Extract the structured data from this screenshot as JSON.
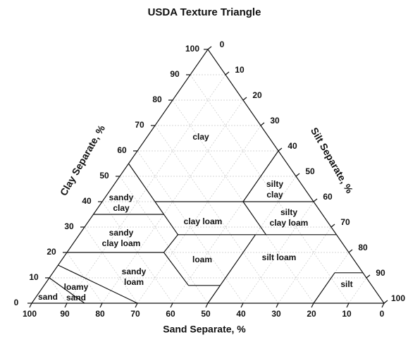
{
  "title": "USDA Texture Triangle",
  "axes": {
    "clay": "Clay Separate, %",
    "silt": "Silt Separate, %",
    "sand": "Sand Separate, %"
  },
  "clay_ticks": [
    0,
    10,
    20,
    30,
    40,
    50,
    60,
    70,
    80,
    90,
    100
  ],
  "silt_ticks": [
    0,
    10,
    20,
    30,
    40,
    50,
    60,
    70,
    80,
    90,
    100
  ],
  "sand_ticks": [
    100,
    90,
    80,
    70,
    60,
    50,
    40,
    30,
    20,
    10,
    0
  ],
  "regions": [
    {
      "lines": [
        "clay"
      ]
    },
    {
      "lines": [
        "silty",
        "clay"
      ]
    },
    {
      "lines": [
        "sandy",
        "clay"
      ]
    },
    {
      "lines": [
        "silty",
        "clay loam"
      ]
    },
    {
      "lines": [
        "clay loam"
      ]
    },
    {
      "lines": [
        "sandy",
        "clay loam"
      ]
    },
    {
      "lines": [
        "loam"
      ]
    },
    {
      "lines": [
        "silt loam"
      ]
    },
    {
      "lines": [
        "sandy",
        "loam"
      ]
    },
    {
      "lines": [
        "silt"
      ]
    },
    {
      "lines": [
        "loamy",
        "sand"
      ]
    },
    {
      "lines": [
        "sand"
      ]
    }
  ]
}
